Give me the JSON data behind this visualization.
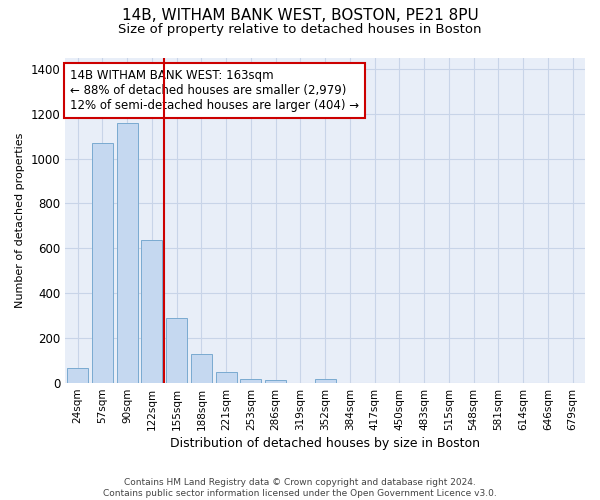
{
  "title_line1": "14B, WITHAM BANK WEST, BOSTON, PE21 8PU",
  "title_line2": "Size of property relative to detached houses in Boston",
  "xlabel": "Distribution of detached houses by size in Boston",
  "ylabel": "Number of detached properties",
  "footer": "Contains HM Land Registry data © Crown copyright and database right 2024.\nContains public sector information licensed under the Open Government Licence v3.0.",
  "categories": [
    "24sqm",
    "57sqm",
    "90sqm",
    "122sqm",
    "155sqm",
    "188sqm",
    "221sqm",
    "253sqm",
    "286sqm",
    "319sqm",
    "352sqm",
    "384sqm",
    "417sqm",
    "450sqm",
    "483sqm",
    "515sqm",
    "548sqm",
    "581sqm",
    "614sqm",
    "646sqm",
    "679sqm"
  ],
  "values": [
    65,
    1070,
    1160,
    635,
    290,
    130,
    50,
    20,
    15,
    0,
    20,
    0,
    0,
    0,
    0,
    0,
    0,
    0,
    0,
    0,
    0
  ],
  "bar_color": "#c5d8f0",
  "bar_edge_color": "#7aaad0",
  "vline_x_index": 3,
  "vline_color": "#cc0000",
  "ylim": [
    0,
    1450
  ],
  "yticks": [
    0,
    200,
    400,
    600,
    800,
    1000,
    1200,
    1400
  ],
  "annotation_text": "14B WITHAM BANK WEST: 163sqm\n← 88% of detached houses are smaller (2,979)\n12% of semi-detached houses are larger (404) →",
  "annotation_box_facecolor": "#ffffff",
  "annotation_box_edgecolor": "#cc0000",
  "grid_color": "#c8d4e8",
  "background_color": "#e8eef8",
  "title_fontsize": 11,
  "subtitle_fontsize": 9.5,
  "annotation_fontsize": 8.5,
  "ylabel_fontsize": 8,
  "xlabel_fontsize": 9,
  "footer_fontsize": 6.5
}
